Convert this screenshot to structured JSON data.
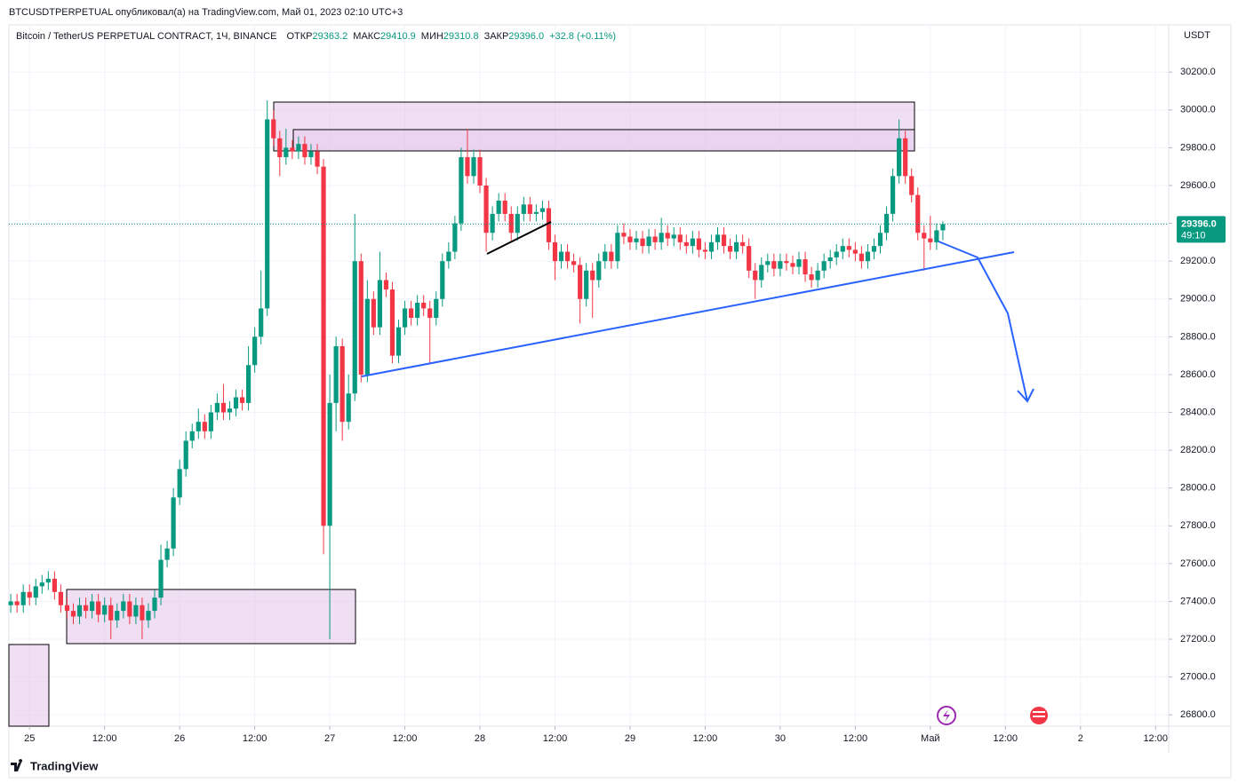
{
  "header": {
    "published": "BTCUSDTPERPETUAL опубликовал(а) на TradingView.com, Май 01, 2023 02:10 UTC+3",
    "brand": "TradingView"
  },
  "chart_data": {
    "type": "candlestick",
    "title": "Bitcoin / TetherUS PERPETUAL CONTRACT, 1Ч, BINANCE",
    "legend_values": [
      {
        "label": "ОТКР",
        "value": "29363.2"
      },
      {
        "label": "МАКС",
        "value": "29410.9"
      },
      {
        "label": "МИН",
        "value": "29310.8"
      },
      {
        "label": "ЗАКР",
        "value": "29396.0"
      }
    ],
    "change": "+32.8 (+0.11%)",
    "currency": "USDT",
    "last_price_label": "29396.0",
    "countdown": "49:10",
    "up_color": "#089981",
    "down_color": "#f23645",
    "xlim": [
      -3.3,
      182.1
    ],
    "ylim": [
      26740,
      30450
    ],
    "xticks": [
      {
        "value": 0,
        "label": "25"
      },
      {
        "value": 12,
        "label": "12:00"
      },
      {
        "value": 24,
        "label": "26"
      },
      {
        "value": 36,
        "label": "12:00"
      },
      {
        "value": 48,
        "label": "27"
      },
      {
        "value": 60,
        "label": "12:00"
      },
      {
        "value": 72,
        "label": "28"
      },
      {
        "value": 84,
        "label": "12:00"
      },
      {
        "value": 96,
        "label": "29"
      },
      {
        "value": 108,
        "label": "12:00"
      },
      {
        "value": 120,
        "label": "30"
      },
      {
        "value": 132,
        "label": "12:00"
      },
      {
        "value": 144,
        "label": "Май"
      },
      {
        "value": 156,
        "label": "12:00"
      },
      {
        "value": 168,
        "label": "2"
      },
      {
        "value": 180,
        "label": "12:00"
      }
    ],
    "yticks": [
      {
        "value": 26800,
        "label": "26800.0"
      },
      {
        "value": 27000,
        "label": "27000.0"
      },
      {
        "value": 27200,
        "label": "27200.0"
      },
      {
        "value": 27400,
        "label": "27400.0"
      },
      {
        "value": 27600,
        "label": "27600.0"
      },
      {
        "value": 27800,
        "label": "27800.0"
      },
      {
        "value": 28000,
        "label": "28000.0"
      },
      {
        "value": 28200,
        "label": "28200.0"
      },
      {
        "value": 28400,
        "label": "28400.0"
      },
      {
        "value": 28600,
        "label": "28600.0"
      },
      {
        "value": 28800,
        "label": "28800.0"
      },
      {
        "value": 29000,
        "label": "29000.0"
      },
      {
        "value": 29200,
        "label": "29200.0"
      },
      {
        "value": 29400,
        "label": "29400.0"
      },
      {
        "value": 29600,
        "label": "29600.0"
      },
      {
        "value": 29800,
        "label": "29800.0"
      },
      {
        "value": 30000,
        "label": "30000.0"
      },
      {
        "value": 30200,
        "label": "30200.0"
      }
    ],
    "x": [
      -3,
      -2,
      -1,
      0,
      1,
      2,
      3,
      4,
      5,
      6,
      7,
      8,
      9,
      10,
      11,
      12,
      13,
      14,
      15,
      16,
      17,
      18,
      19,
      20,
      21,
      22,
      23,
      24,
      25,
      26,
      27,
      28,
      29,
      30,
      31,
      32,
      33,
      34,
      35,
      36,
      37,
      38,
      39,
      40,
      41,
      42,
      43,
      44,
      45,
      46,
      47,
      48,
      49,
      50,
      51,
      52,
      53,
      54,
      55,
      56,
      57,
      58,
      59,
      60,
      61,
      62,
      63,
      64,
      65,
      66,
      67,
      68,
      69,
      70,
      71,
      72,
      73,
      74,
      75,
      76,
      77,
      78,
      79,
      80,
      81,
      82,
      83,
      84,
      85,
      86,
      87,
      88,
      89,
      90,
      91,
      92,
      93,
      94,
      95,
      96,
      97,
      98,
      99,
      100,
      101,
      102,
      103,
      104,
      105,
      106,
      107,
      108,
      109,
      110,
      111,
      112,
      113,
      114,
      115,
      116,
      117,
      118,
      119,
      120,
      121,
      122,
      123,
      124,
      125,
      126,
      127,
      128,
      129,
      130,
      131,
      132,
      133,
      134,
      135,
      136,
      137,
      138,
      139,
      140,
      141,
      142,
      143,
      144,
      145,
      146
    ],
    "ohlc": [
      [
        27380,
        27440,
        27340,
        27400
      ],
      [
        27400,
        27440,
        27340,
        27380
      ],
      [
        27380,
        27490,
        27340,
        27450
      ],
      [
        27450,
        27490,
        27380,
        27420
      ],
      [
        27420,
        27520,
        27380,
        27480
      ],
      [
        27480,
        27540,
        27440,
        27500
      ],
      [
        27500,
        27560,
        27460,
        27520
      ],
      [
        27520,
        27560,
        27410,
        27450
      ],
      [
        27450,
        27490,
        27340,
        27380
      ],
      [
        27380,
        27420,
        27310,
        27350
      ],
      [
        27350,
        27390,
        27280,
        27320
      ],
      [
        27320,
        27420,
        27280,
        27380
      ],
      [
        27380,
        27420,
        27310,
        27350
      ],
      [
        27350,
        27440,
        27310,
        27400
      ],
      [
        27400,
        27440,
        27290,
        27330
      ],
      [
        27330,
        27420,
        27290,
        27380
      ],
      [
        27380,
        27420,
        27200,
        27300
      ],
      [
        27300,
        27390,
        27260,
        27350
      ],
      [
        27350,
        27440,
        27310,
        27400
      ],
      [
        27400,
        27440,
        27280,
        27320
      ],
      [
        27320,
        27420,
        27280,
        27380
      ],
      [
        27380,
        27420,
        27200,
        27300
      ],
      [
        27300,
        27390,
        27260,
        27350
      ],
      [
        27350,
        27460,
        27310,
        27420
      ],
      [
        27420,
        27700,
        27380,
        27620
      ],
      [
        27620,
        27720,
        27580,
        27680
      ],
      [
        27680,
        28000,
        27640,
        27950
      ],
      [
        27950,
        28150,
        27910,
        28100
      ],
      [
        28100,
        28300,
        28060,
        28250
      ],
      [
        28250,
        28340,
        28210,
        28300
      ],
      [
        28300,
        28420,
        28260,
        28350
      ],
      [
        28350,
        28390,
        28260,
        28300
      ],
      [
        28300,
        28440,
        28260,
        28400
      ],
      [
        28400,
        28500,
        28360,
        28450
      ],
      [
        28450,
        28550,
        28360,
        28400
      ],
      [
        28400,
        28460,
        28360,
        28420
      ],
      [
        28420,
        28520,
        28380,
        28480
      ],
      [
        28480,
        28520,
        28410,
        28450
      ],
      [
        28450,
        28750,
        28410,
        28650
      ],
      [
        28650,
        28850,
        28610,
        28800
      ],
      [
        28800,
        29150,
        28760,
        28950
      ],
      [
        28950,
        30050,
        28910,
        29950
      ],
      [
        29950,
        30000,
        29810,
        29850
      ],
      [
        29850,
        29890,
        29650,
        29750
      ],
      [
        29750,
        29900,
        29710,
        29800
      ],
      [
        29800,
        29840,
        29740,
        29780
      ],
      [
        29780,
        29860,
        29740,
        29820
      ],
      [
        29820,
        29860,
        29710,
        29750
      ],
      [
        29750,
        29820,
        29710,
        29780
      ],
      [
        29780,
        29820,
        29660,
        29700
      ],
      [
        29700,
        29740,
        27650,
        27800
      ],
      [
        27800,
        28600,
        27200,
        28450
      ],
      [
        28450,
        28800,
        28300,
        28750
      ],
      [
        28750,
        28790,
        28250,
        28350
      ],
      [
        28350,
        28600,
        28310,
        28500
      ],
      [
        28500,
        29450,
        28460,
        29200
      ],
      [
        29200,
        29240,
        28560,
        28600
      ],
      [
        28600,
        29100,
        28560,
        29000
      ],
      [
        29000,
        29040,
        28810,
        28850
      ],
      [
        28850,
        29250,
        28810,
        29100
      ],
      [
        29100,
        29140,
        29010,
        29050
      ],
      [
        29050,
        29090,
        28660,
        28700
      ],
      [
        28700,
        28890,
        28660,
        28850
      ],
      [
        28850,
        28990,
        28810,
        28950
      ],
      [
        28950,
        28990,
        28860,
        28900
      ],
      [
        28900,
        29020,
        28860,
        28980
      ],
      [
        28980,
        29020,
        28910,
        28950
      ],
      [
        28950,
        28990,
        28660,
        28900
      ],
      [
        28900,
        29040,
        28860,
        29000
      ],
      [
        29000,
        29240,
        28960,
        29200
      ],
      [
        29200,
        29300,
        29160,
        29250
      ],
      [
        29250,
        29440,
        29210,
        29400
      ],
      [
        29400,
        29800,
        29360,
        29750
      ],
      [
        29750,
        29900,
        29610,
        29650
      ],
      [
        29650,
        29790,
        29610,
        29750
      ],
      [
        29750,
        29790,
        29560,
        29600
      ],
      [
        29600,
        29640,
        29250,
        29350
      ],
      [
        29350,
        29490,
        29310,
        29450
      ],
      [
        29450,
        29560,
        29410,
        29520
      ],
      [
        29520,
        29560,
        29410,
        29450
      ],
      [
        29450,
        29490,
        29310,
        29350
      ],
      [
        29350,
        29490,
        29310,
        29450
      ],
      [
        29450,
        29540,
        29410,
        29500
      ],
      [
        29500,
        29540,
        29410,
        29450
      ],
      [
        29450,
        29500,
        29410,
        29460
      ],
      [
        29460,
        29520,
        29420,
        29480
      ],
      [
        29480,
        29520,
        29260,
        29300
      ],
      [
        29300,
        29340,
        29100,
        29200
      ],
      [
        29200,
        29290,
        29160,
        29250
      ],
      [
        29250,
        29290,
        29160,
        29200
      ],
      [
        29200,
        29240,
        29140,
        29180
      ],
      [
        29180,
        29220,
        28870,
        29000
      ],
      [
        29000,
        29190,
        28960,
        29150
      ],
      [
        29150,
        29190,
        28900,
        29100
      ],
      [
        29100,
        29240,
        29060,
        29200
      ],
      [
        29200,
        29290,
        29160,
        29250
      ],
      [
        29250,
        29290,
        29160,
        29200
      ],
      [
        29200,
        29390,
        29160,
        29350
      ],
      [
        29350,
        29400,
        29290,
        29330
      ],
      [
        29330,
        29370,
        29260,
        29300
      ],
      [
        29300,
        29360,
        29260,
        29320
      ],
      [
        29320,
        29360,
        29240,
        29280
      ],
      [
        29280,
        29370,
        29240,
        29330
      ],
      [
        29330,
        29370,
        29260,
        29300
      ],
      [
        29300,
        29430,
        29260,
        29350
      ],
      [
        29350,
        29390,
        29280,
        29320
      ],
      [
        29320,
        29380,
        29280,
        29340
      ],
      [
        29340,
        29380,
        29260,
        29300
      ],
      [
        29300,
        29340,
        29240,
        29280
      ],
      [
        29280,
        29360,
        29240,
        29320
      ],
      [
        29320,
        29360,
        29220,
        29260
      ],
      [
        29260,
        29300,
        29210,
        29250
      ],
      [
        29250,
        29340,
        29210,
        29300
      ],
      [
        29300,
        29380,
        29260,
        29340
      ],
      [
        29340,
        29380,
        29240,
        29280
      ],
      [
        29280,
        29320,
        29210,
        29250
      ],
      [
        29250,
        29340,
        29210,
        29300
      ],
      [
        29300,
        29340,
        29240,
        29280
      ],
      [
        29280,
        29320,
        29110,
        29150
      ],
      [
        29150,
        29190,
        29000,
        29100
      ],
      [
        29100,
        29220,
        29060,
        29180
      ],
      [
        29180,
        29240,
        29140,
        29200
      ],
      [
        29200,
        29240,
        29120,
        29160
      ],
      [
        29160,
        29240,
        29120,
        29200
      ],
      [
        29200,
        29240,
        29150,
        29190
      ],
      [
        29190,
        29230,
        29130,
        29170
      ],
      [
        29170,
        29250,
        29130,
        29210
      ],
      [
        29210,
        29250,
        29090,
        29130
      ],
      [
        29130,
        29170,
        29060,
        29100
      ],
      [
        29100,
        29190,
        29060,
        29150
      ],
      [
        29150,
        29240,
        29110,
        29200
      ],
      [
        29200,
        29260,
        29160,
        29220
      ],
      [
        29220,
        29290,
        29180,
        29250
      ],
      [
        29250,
        29320,
        29210,
        29280
      ],
      [
        29280,
        29320,
        29220,
        29260
      ],
      [
        29260,
        29300,
        29200,
        29240
      ],
      [
        29240,
        29280,
        29160,
        29200
      ],
      [
        29200,
        29290,
        29160,
        29250
      ],
      [
        29250,
        29320,
        29210,
        29280
      ],
      [
        29280,
        29390,
        29240,
        29350
      ],
      [
        29350,
        29490,
        29310,
        29450
      ],
      [
        29450,
        29690,
        29410,
        29650
      ],
      [
        29650,
        29950,
        29610,
        29850
      ],
      [
        29850,
        29890,
        29610,
        29650
      ],
      [
        29650,
        29690,
        29510,
        29550
      ],
      [
        29550,
        29590,
        29310,
        29350
      ],
      [
        29350,
        29390,
        29150,
        29320
      ],
      [
        29320,
        29440,
        29260,
        29300
      ],
      [
        29300,
        29400,
        29260,
        29363.2
      ],
      [
        29363.2,
        29410.9,
        29310.8,
        29396
      ]
    ]
  }
}
